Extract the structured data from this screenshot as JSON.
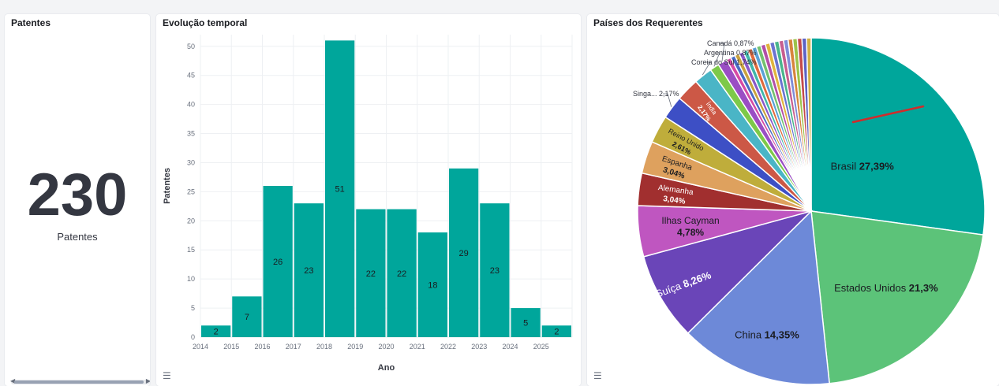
{
  "metric_panel": {
    "title": "Patentes",
    "value": "230",
    "label": "Patentes"
  },
  "bar_panel": {
    "title": "Evolução temporal",
    "legend_icon": "list-icon"
  },
  "pie_panel": {
    "title": "Países dos Requerentes",
    "legend_icon": "list-icon"
  },
  "chart_data": [
    {
      "type": "bar",
      "title": "Evolução temporal",
      "xlabel": "Ano",
      "ylabel": "Patentes",
      "ylim": [
        0,
        52
      ],
      "yticks": [
        0,
        5,
        10,
        15,
        20,
        25,
        30,
        35,
        40,
        45,
        50
      ],
      "xticks": [
        "2014",
        "2015",
        "2016",
        "2017",
        "2018",
        "2019",
        "2020",
        "2021",
        "2022",
        "2023",
        "2024",
        "2025"
      ],
      "bar_color": "#00a69b",
      "values": [
        2,
        7,
        26,
        23,
        51,
        22,
        22,
        18,
        29,
        23,
        5,
        2
      ],
      "value_labels": [
        "2",
        "7",
        "26",
        "23",
        "51",
        "22",
        "22",
        "18",
        "29",
        "23",
        "5",
        "2"
      ],
      "grid": true
    },
    {
      "type": "pie",
      "title": "Países dos Requerentes",
      "slices": [
        {
          "name": "Brasil",
          "value": 27.39,
          "pct": "27,39%",
          "color": "#00a69b"
        },
        {
          "name": "Estados Unidos",
          "value": 21.3,
          "pct": "21,3%",
          "color": "#5cc379"
        },
        {
          "name": "China",
          "value": 14.35,
          "pct": "14,35%",
          "color": "#6d89d8"
        },
        {
          "name": "Suíça",
          "value": 8.26,
          "pct": "8,26%",
          "color": "#6a45b8"
        },
        {
          "name": "Ilhas Cayman",
          "value": 4.78,
          "pct": "4,78%",
          "color": "#bf56c0"
        },
        {
          "name": "Alemanha",
          "value": 3.04,
          "pct": "3,04%",
          "color": "#a12f2f"
        },
        {
          "name": "Espanha",
          "value": 3.04,
          "pct": "3,04%",
          "color": "#dea15e"
        },
        {
          "name": "Reino Unido",
          "value": 2.61,
          "pct": "2,61%",
          "color": "#bfad3b"
        },
        {
          "name": "Singa...",
          "value": 2.17,
          "pct": "2,17%",
          "color": "#3d4fc5"
        },
        {
          "name": "Índia",
          "value": 2.17,
          "pct": "2,17%",
          "color": "#cc5846"
        },
        {
          "name": "Coreia do Sul",
          "value": 1.74,
          "pct": "1,74%",
          "color": "#4ab5c6"
        },
        {
          "name": "Argentina",
          "value": 0.87,
          "pct": "0,87%",
          "color": "#7dc949"
        },
        {
          "name": "Canadá",
          "value": 0.87,
          "pct": "0,87%",
          "color": "#9a4ec4"
        },
        {
          "name": "",
          "value": 0.43,
          "pct": "",
          "color": "#d64aa4"
        },
        {
          "name": "",
          "value": 0.43,
          "pct": "",
          "color": "#4a6cc4"
        },
        {
          "name": "",
          "value": 0.43,
          "pct": "",
          "color": "#c9a23e"
        },
        {
          "name": "",
          "value": 0.43,
          "pct": "",
          "color": "#8a58c9"
        },
        {
          "name": "",
          "value": 0.43,
          "pct": "",
          "color": "#3fb6a9"
        },
        {
          "name": "",
          "value": 0.43,
          "pct": "",
          "color": "#e06a3c"
        },
        {
          "name": "",
          "value": 0.43,
          "pct": "",
          "color": "#5aa1d6"
        },
        {
          "name": "",
          "value": 0.43,
          "pct": "",
          "color": "#73c16f"
        },
        {
          "name": "",
          "value": 0.43,
          "pct": "",
          "color": "#b24fa8"
        },
        {
          "name": "",
          "value": 0.43,
          "pct": "",
          "color": "#e0b43e"
        },
        {
          "name": "",
          "value": 0.43,
          "pct": "",
          "color": "#6a73d0"
        },
        {
          "name": "",
          "value": 0.43,
          "pct": "",
          "color": "#49b58c"
        },
        {
          "name": "",
          "value": 0.43,
          "pct": "",
          "color": "#c75d8f"
        },
        {
          "name": "",
          "value": 0.43,
          "pct": "",
          "color": "#7f8cd8"
        },
        {
          "name": "",
          "value": 0.43,
          "pct": "",
          "color": "#d7843c"
        },
        {
          "name": "",
          "value": 0.43,
          "pct": "",
          "color": "#9cc34a"
        },
        {
          "name": "",
          "value": 0.43,
          "pct": "",
          "color": "#c44a4a"
        },
        {
          "name": "",
          "value": 0.43,
          "pct": "",
          "color": "#5c63c4"
        },
        {
          "name": "",
          "value": 0.43,
          "pct": "",
          "color": "#d0b045"
        }
      ]
    }
  ]
}
